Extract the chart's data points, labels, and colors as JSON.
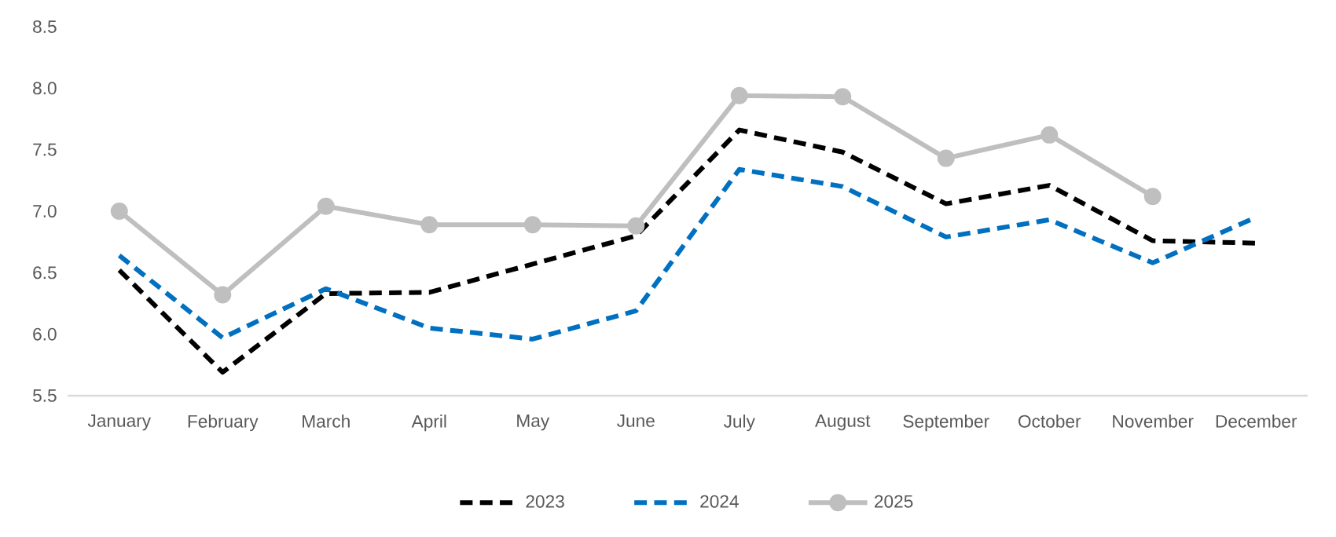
{
  "chart_data": {
    "type": "line",
    "categories": [
      "January",
      "February",
      "March",
      "April",
      "May",
      "June",
      "July",
      "August",
      "September",
      "October",
      "November",
      "December"
    ],
    "series": [
      {
        "name": "2023",
        "color": "#000000",
        "line_style": "dashed",
        "marker": "none",
        "values": [
          6.52,
          5.69,
          6.33,
          6.34,
          6.57,
          6.8,
          7.66,
          7.48,
          7.06,
          7.21,
          6.76,
          6.74
        ]
      },
      {
        "name": "2024",
        "color": "#0070c0",
        "line_style": "dashed",
        "marker": "none",
        "values": [
          6.64,
          5.97,
          6.37,
          6.05,
          5.96,
          6.19,
          7.34,
          7.2,
          6.79,
          6.93,
          6.58,
          6.95
        ]
      },
      {
        "name": "2025",
        "color": "#bfbfbf",
        "line_style": "solid",
        "marker": "circle",
        "values": [
          7.0,
          6.32,
          7.04,
          6.89,
          6.89,
          6.88,
          7.94,
          7.93,
          7.43,
          7.62,
          7.12,
          null
        ]
      }
    ],
    "ylim": [
      5.5,
      8.5
    ],
    "yticks": [
      {
        "value": 5.5,
        "label": "5.5"
      },
      {
        "value": 6,
        "label": "6.0"
      },
      {
        "value": 6.5,
        "label": "6.5"
      },
      {
        "value": 7,
        "label": "7.0"
      },
      {
        "value": 7.5,
        "label": "7.5"
      },
      {
        "value": 8,
        "label": "8.0"
      },
      {
        "value": 8.5,
        "label": "8.5"
      }
    ],
    "grid": false,
    "legend": "bottom"
  }
}
